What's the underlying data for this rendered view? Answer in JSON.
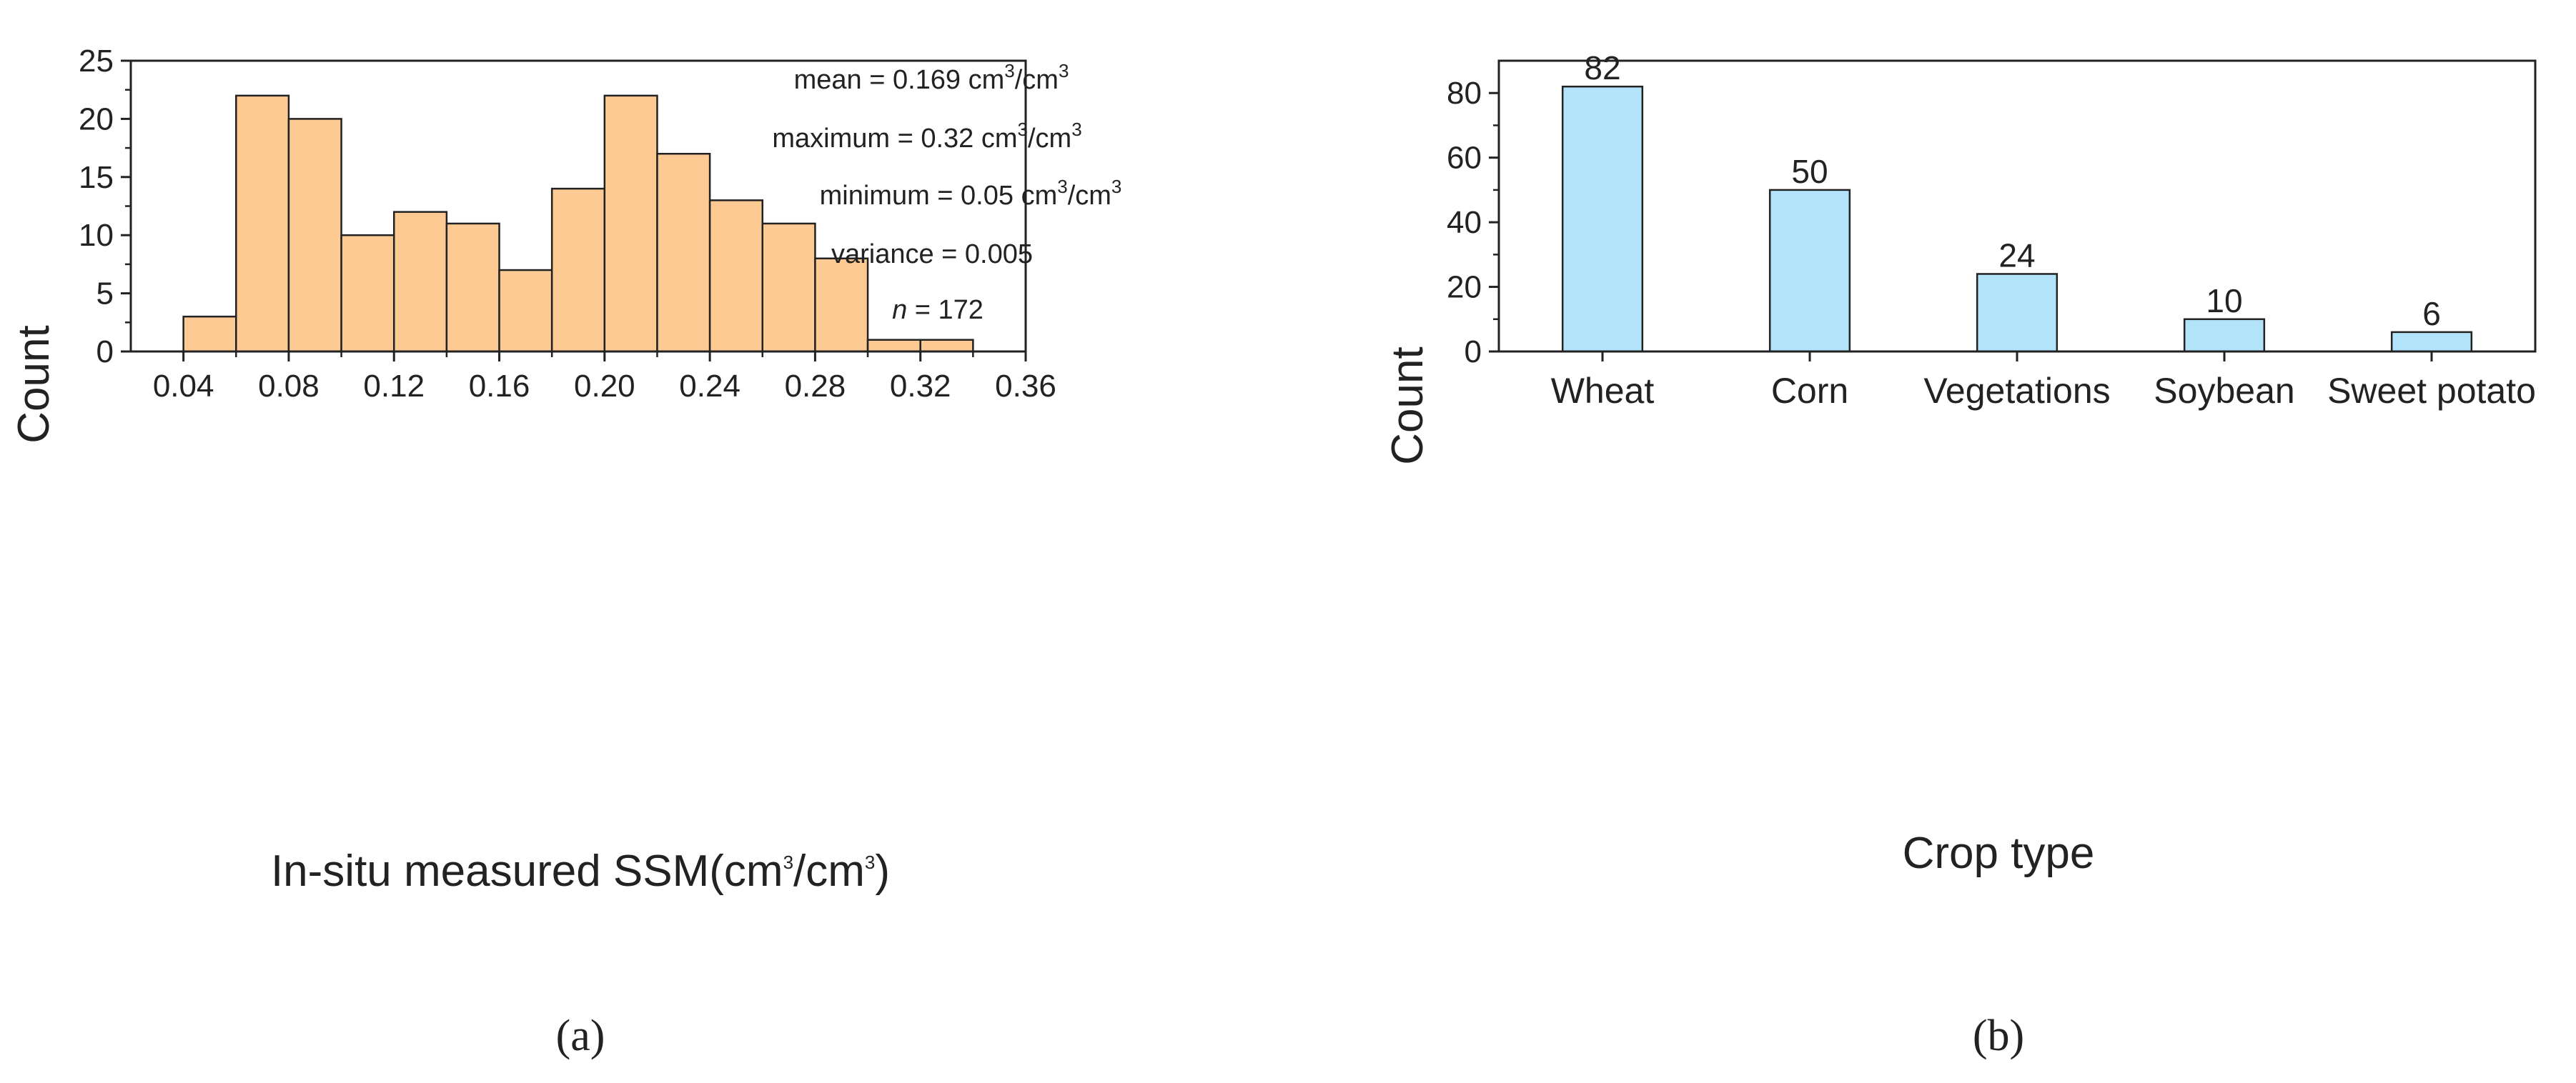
{
  "chart_data": [
    {
      "type": "bar",
      "subtype": "histogram",
      "panel_label": "(a)",
      "xlabel": "In-situ measured SSM(cm³/cm³)",
      "xlabel_parts": {
        "pre": "In-situ measured SSM(cm",
        "sup1": "3",
        "mid": "/cm",
        "sup2": "3",
        "post": ")"
      },
      "ylabel": "Count",
      "xlim": [
        0.02,
        0.36
      ],
      "ylim": [
        0,
        25
      ],
      "x_ticks": [
        "0.04",
        "0.08",
        "0.12",
        "0.16",
        "0.20",
        "0.24",
        "0.28",
        "0.32",
        "0.36"
      ],
      "x_tick_values": [
        0.04,
        0.08,
        0.12,
        0.16,
        0.2,
        0.24,
        0.28,
        0.32,
        0.36
      ],
      "y_ticks": [
        "0",
        "5",
        "10",
        "15",
        "20",
        "25"
      ],
      "y_tick_values": [
        0,
        5,
        10,
        15,
        20,
        25
      ],
      "bin_width": 0.02,
      "bin_starts": [
        0.04,
        0.06,
        0.08,
        0.1,
        0.12,
        0.14,
        0.16,
        0.18,
        0.2,
        0.22,
        0.24,
        0.26,
        0.28,
        0.3,
        0.32
      ],
      "values": [
        3,
        22,
        20,
        10,
        12,
        11,
        7,
        14,
        22,
        17,
        13,
        11,
        8,
        1,
        1
      ],
      "bar_color": "#fdca93",
      "legend_position": "top-right",
      "annotations": {
        "mean": {
          "pre": "mean = 0.169 cm",
          "sup1": "3",
          "mid": "/cm",
          "sup2": "3"
        },
        "maximum": {
          "pre": "maximum = 0.32 cm",
          "sup1": "3",
          "mid": "/cm",
          "sup2": "3"
        },
        "minimum": {
          "pre": "minimum = 0.05 cm",
          "sup1": "3",
          "mid": "/cm",
          "sup2": "3"
        },
        "variance": "variance = 0.005",
        "n": {
          "italic": "n",
          "rest": " = 172"
        }
      }
    },
    {
      "type": "bar",
      "panel_label": "(b)",
      "xlabel": "Crop type",
      "ylabel": "Count",
      "ylim": [
        0,
        90
      ],
      "y_ticks": [
        "0",
        "20",
        "40",
        "60",
        "80"
      ],
      "y_tick_values": [
        0,
        20,
        40,
        60,
        80
      ],
      "categories": [
        "Wheat",
        "Corn",
        "Vegetations",
        "Soybean",
        "Sweet potato"
      ],
      "values": [
        82,
        50,
        24,
        10,
        6
      ],
      "value_labels": [
        "82",
        "50",
        "24",
        "10",
        "6"
      ],
      "bar_color": "#b3e3fb"
    }
  ]
}
